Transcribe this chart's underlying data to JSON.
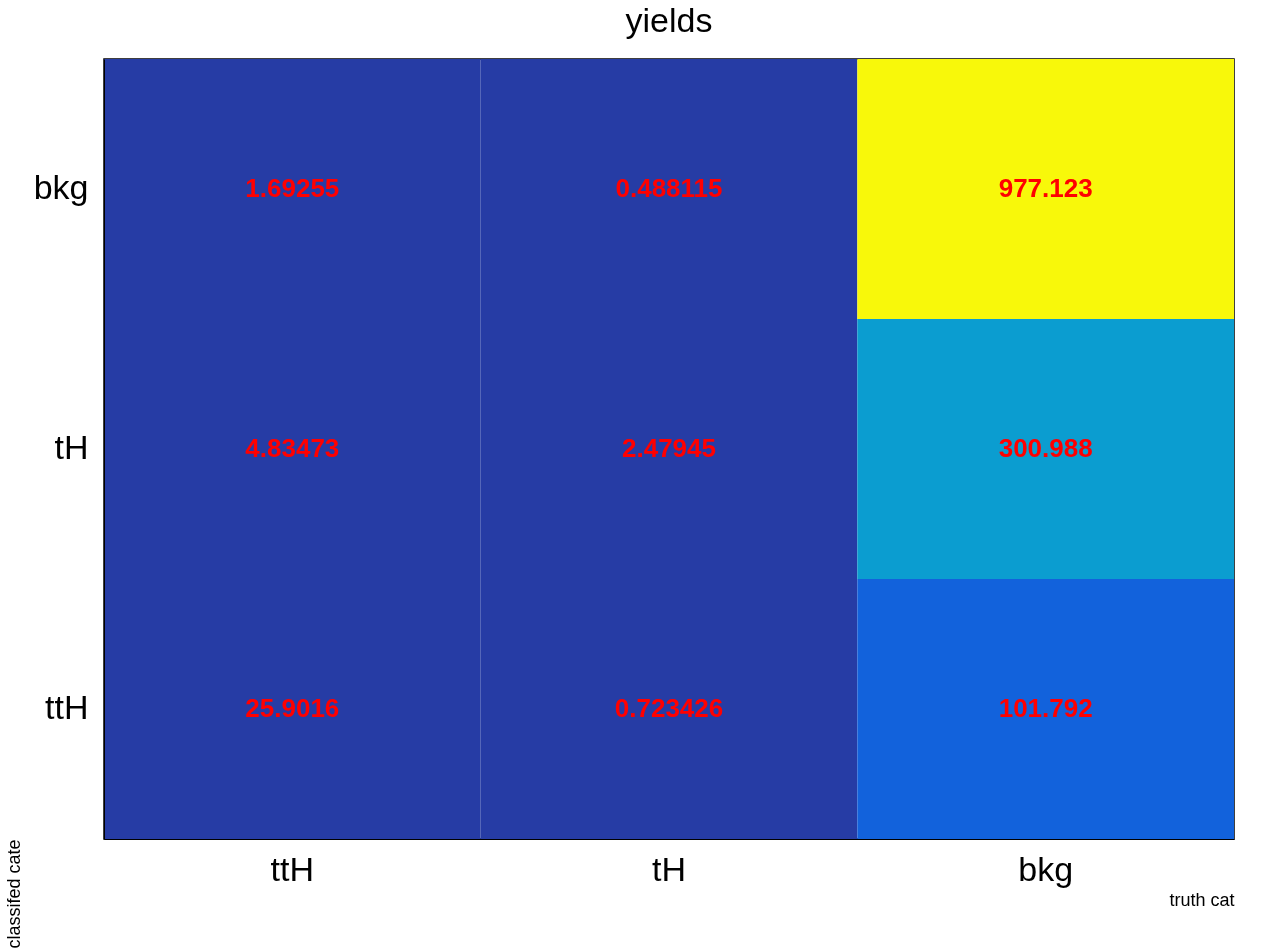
{
  "chart_data": {
    "type": "heatmap",
    "title": "yields",
    "xlabel": "truth cat",
    "ylabel": "classifed cate",
    "categories": [
      "ttH",
      "tH",
      "bkg"
    ],
    "y_categories": [
      "bkg",
      "tH",
      "ttH"
    ],
    "cells": [
      [
        1.69255,
        0.488115,
        977.123
      ],
      [
        4.83473,
        2.47945,
        300.988
      ],
      [
        25.9016,
        0.723426,
        101.792
      ]
    ],
    "colors": [
      [
        "#263ca5",
        "#263ca5",
        "#f8f80a"
      ],
      [
        "#263ca5",
        "#263ca5",
        "#0b9dd0"
      ],
      [
        "#263ca5",
        "#263ca5",
        "#1262dc"
      ]
    ],
    "data_labels": true
  }
}
